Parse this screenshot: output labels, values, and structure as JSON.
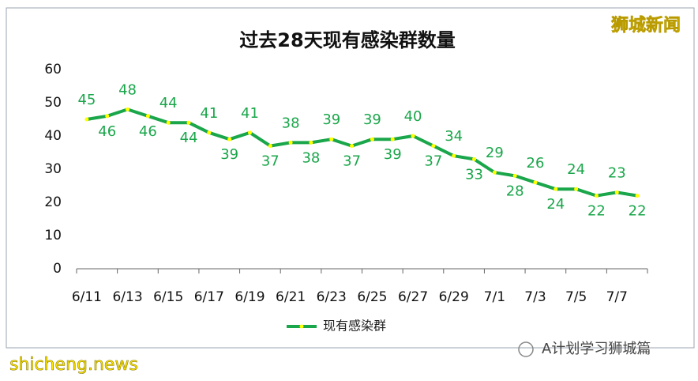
{
  "chart_data": {
    "type": "line",
    "title": "过去28天现有感染群数量",
    "categories": [
      "6/11",
      null,
      "6/13",
      null,
      "6/15",
      null,
      "6/17",
      null,
      "6/19",
      null,
      "6/21",
      null,
      "6/23",
      null,
      "6/25",
      null,
      "6/27",
      null,
      "6/29",
      null,
      "7/1",
      null,
      "7/3",
      null,
      "7/5",
      null,
      "7/7",
      null
    ],
    "series": [
      {
        "name": "现有感染群",
        "color": "#1aa64a",
        "marker_color": "#ffff00",
        "values": [
          45,
          46,
          48,
          46,
          44,
          44,
          41,
          39,
          41,
          37,
          38,
          38,
          39,
          37,
          39,
          39,
          40,
          37,
          34,
          33,
          29,
          28,
          26,
          24,
          24,
          22,
          23,
          22
        ]
      }
    ],
    "ylim": [
      0,
      60
    ],
    "yticks": [
      0,
      10,
      20,
      30,
      40,
      50,
      60
    ],
    "grid": false,
    "legend": "bottom"
  },
  "watermarks": [
    "狮城新闻",
    "shicheng.news",
    "A计划学习狮城篇"
  ]
}
